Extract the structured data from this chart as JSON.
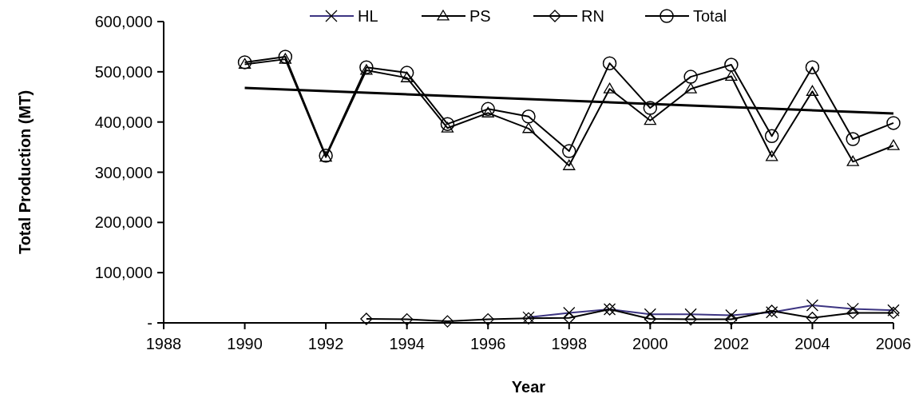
{
  "chart_data": {
    "type": "line",
    "xlabel": "Year",
    "ylabel": "Total Production (MT)",
    "x": [
      1990,
      1991,
      1992,
      1993,
      1994,
      1995,
      1996,
      1997,
      1998,
      1999,
      2000,
      2001,
      2002,
      2003,
      2004,
      2005,
      2006
    ],
    "series": [
      {
        "name": "HL",
        "color": "#3d3582",
        "marker": "cross",
        "values": [
          null,
          null,
          null,
          null,
          null,
          null,
          null,
          11000,
          20000,
          27000,
          17000,
          17000,
          15000,
          21000,
          35000,
          28000,
          25000
        ]
      },
      {
        "name": "PS",
        "color": "#000000",
        "marker": "triangle",
        "values": [
          515000,
          525000,
          330000,
          503000,
          488000,
          388000,
          418000,
          387000,
          313000,
          466000,
          403000,
          466000,
          491000,
          331000,
          461000,
          321000,
          353000
        ]
      },
      {
        "name": "RN",
        "color": "#000000",
        "marker": "diamond",
        "values": [
          null,
          null,
          null,
          8000,
          7000,
          3000,
          7000,
          9000,
          10000,
          27000,
          8000,
          7000,
          7000,
          24000,
          10000,
          20000,
          20000
        ]
      },
      {
        "name": "Total",
        "color": "#000000",
        "marker": "circle",
        "values": [
          519000,
          530000,
          333000,
          509000,
          498000,
          396000,
          426000,
          411000,
          342000,
          517000,
          428000,
          490000,
          514000,
          372000,
          509000,
          366000,
          398000
        ]
      },
      {
        "type": "line",
        "color": "#000000",
        "marker": "none",
        "x": [
          1990,
          2006
        ],
        "values": [
          468000,
          417000
        ]
      }
    ],
    "xlim": [
      1988,
      2006
    ],
    "xticks": [
      1988,
      1990,
      1992,
      1994,
      1996,
      1998,
      2000,
      2002,
      2004,
      2006
    ],
    "ylim": [
      0,
      600000
    ],
    "yticks": [
      {
        "value": 0,
        "label": "-"
      },
      {
        "value": 100000,
        "label": "100,000"
      },
      {
        "value": 200000,
        "label": "200,000"
      },
      {
        "value": 300000,
        "label": "300,000"
      },
      {
        "value": 400000,
        "label": "400,000"
      },
      {
        "value": 500000,
        "label": "500,000"
      },
      {
        "value": 600000,
        "label": "600,000"
      }
    ],
    "legend": "top",
    "grid": false
  }
}
